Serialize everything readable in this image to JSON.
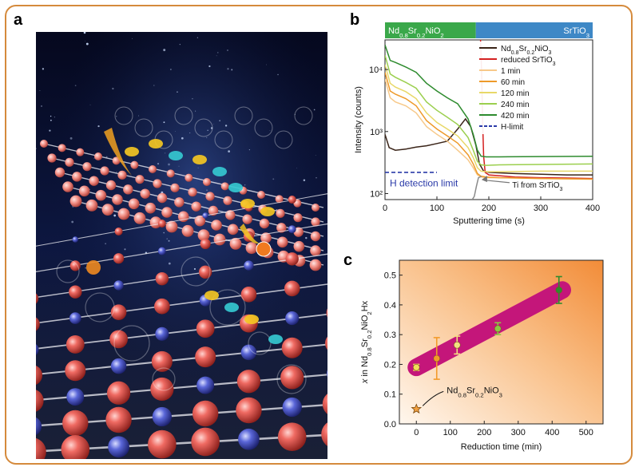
{
  "panels": {
    "a": "a",
    "b": "b",
    "c": "c"
  },
  "colors": {
    "frame": "#d58a3c",
    "nd_bar": "#3aa84a",
    "sto_bar": "#3e88c6",
    "c_band": "#c4167a",
    "c_bg_light": "#fff6ec",
    "c_bg_dark": "#f39a4a"
  },
  "chart_data": [
    {
      "type": "line",
      "panel": "b",
      "xlabel": "Sputtering time (s)",
      "ylabel": "Intensity (counts)",
      "xlim": [
        0,
        400
      ],
      "xticks": [
        0,
        100,
        200,
        300,
        400
      ],
      "yscale": "log",
      "ylim": [
        80,
        30000
      ],
      "yticks": [
        {
          "v": 100,
          "label": "10²"
        },
        {
          "v": 1000,
          "label": "10³"
        },
        {
          "v": 10000,
          "label": "10⁴"
        }
      ],
      "top_bar": {
        "left": "Nd0.8Sr0.2NiO2",
        "right": "SrTiO3"
      },
      "annotations": {
        "h_limit": "H detection limit",
        "ti": "Ti from SrTiO3"
      },
      "legend_position": "top-right",
      "series": [
        {
          "name": "Nd0.8Sr0.2NiO3",
          "color": "#3a2418",
          "style": "solid",
          "x": [
            0,
            8,
            20,
            40,
            60,
            80,
            100,
            120,
            140,
            155,
            165,
            175,
            182,
            190,
            200,
            250,
            300,
            350,
            400
          ],
          "y": [
            900,
            550,
            500,
            520,
            560,
            590,
            640,
            700,
            1100,
            1600,
            1200,
            600,
            300,
            230,
            220,
            210,
            205,
            200,
            200
          ]
        },
        {
          "name": "reduced SrTiO3",
          "color": "#d42020",
          "style": "solid",
          "x": [
            184,
            186,
            188,
            190,
            193,
            200,
            250,
            300,
            350,
            400
          ],
          "y": [
            30000,
            10000,
            1500,
            400,
            220,
            200,
            185,
            180,
            178,
            175
          ]
        },
        {
          "name": "1 min",
          "color": "#f7c98a",
          "style": "solid",
          "x": [
            0,
            10,
            20,
            40,
            60,
            80,
            100,
            120,
            140,
            160,
            170,
            178,
            185,
            195,
            220,
            300,
            400
          ],
          "y": [
            7000,
            3500,
            3000,
            2600,
            2000,
            1200,
            900,
            700,
            500,
            350,
            260,
            200,
            185,
            180,
            180,
            175,
            170
          ]
        },
        {
          "name": "60 min",
          "color": "#ee9a2a",
          "style": "solid",
          "x": [
            0,
            10,
            20,
            40,
            60,
            80,
            100,
            120,
            140,
            160,
            170,
            178,
            185,
            195,
            220,
            300,
            400
          ],
          "y": [
            9000,
            4500,
            4000,
            3400,
            2600,
            1500,
            1100,
            850,
            650,
            420,
            300,
            210,
            190,
            185,
            180,
            175,
            172
          ]
        },
        {
          "name": "120 min",
          "color": "#e8d868",
          "style": "solid",
          "x": [
            0,
            10,
            20,
            40,
            60,
            80,
            100,
            120,
            140,
            160,
            170,
            178,
            185,
            195,
            220,
            300,
            400
          ],
          "y": [
            12000,
            6000,
            5200,
            4400,
            3400,
            2000,
            1400,
            1100,
            850,
            550,
            380,
            260,
            230,
            225,
            225,
            230,
            230
          ]
        },
        {
          "name": "240 min",
          "color": "#9bcf4e",
          "style": "solid",
          "x": [
            0,
            10,
            20,
            40,
            60,
            80,
            100,
            120,
            140,
            160,
            170,
            178,
            185,
            195,
            220,
            300,
            400
          ],
          "y": [
            17000,
            8500,
            7500,
            6200,
            5000,
            3000,
            2200,
            1700,
            1300,
            800,
            500,
            330,
            290,
            285,
            290,
            295,
            300
          ]
        },
        {
          "name": "420 min",
          "color": "#2e8b2e",
          "style": "solid",
          "x": [
            0,
            10,
            20,
            40,
            60,
            80,
            100,
            120,
            140,
            160,
            170,
            178,
            185,
            195,
            220,
            300,
            400
          ],
          "y": [
            25000,
            14000,
            13000,
            11000,
            9000,
            6000,
            4500,
            3500,
            2800,
            1600,
            900,
            500,
            400,
            390,
            390,
            395,
            400
          ]
        },
        {
          "name": "H-limit",
          "color": "#2a3aa8",
          "style": "dashed",
          "x": [
            0,
            100
          ],
          "y": [
            220,
            220
          ]
        },
        {
          "name": "Ti from SrTiO3",
          "color": "#8a8a8a",
          "style": "solid",
          "in_legend": false,
          "x": [
            168,
            172,
            176,
            180,
            186
          ],
          "y": [
            80,
            90,
            130,
            180,
            190
          ]
        }
      ]
    },
    {
      "type": "scatter",
      "panel": "c",
      "xlabel": "Reduction time (min)",
      "ylabel": "x in Nd0.8Sr0.2NiO2Hx",
      "xlim": [
        -50,
        550
      ],
      "ylim": [
        0,
        0.55
      ],
      "xticks": [
        0,
        100,
        200,
        300,
        400,
        500
      ],
      "yticks": [
        0.0,
        0.1,
        0.2,
        0.3,
        0.4,
        0.5
      ],
      "band": {
        "x": [
          0,
          430
        ],
        "y": [
          0.19,
          0.45
        ]
      },
      "annotation": "Nd0.8Sr0.2NiO3",
      "star": {
        "x": 0,
        "y": 0.05
      },
      "points": [
        {
          "x": 0,
          "y": 0.19,
          "err": 0.01,
          "color": "#f2e05a"
        },
        {
          "x": 60,
          "y": 0.22,
          "err": 0.07,
          "color": "#f39b2a"
        },
        {
          "x": 120,
          "y": 0.265,
          "err": 0.03,
          "color": "#f3e080"
        },
        {
          "x": 240,
          "y": 0.32,
          "err": 0.02,
          "color": "#8dc645"
        },
        {
          "x": 420,
          "y": 0.45,
          "err": 0.045,
          "color": "#2e8b2e"
        }
      ]
    }
  ]
}
